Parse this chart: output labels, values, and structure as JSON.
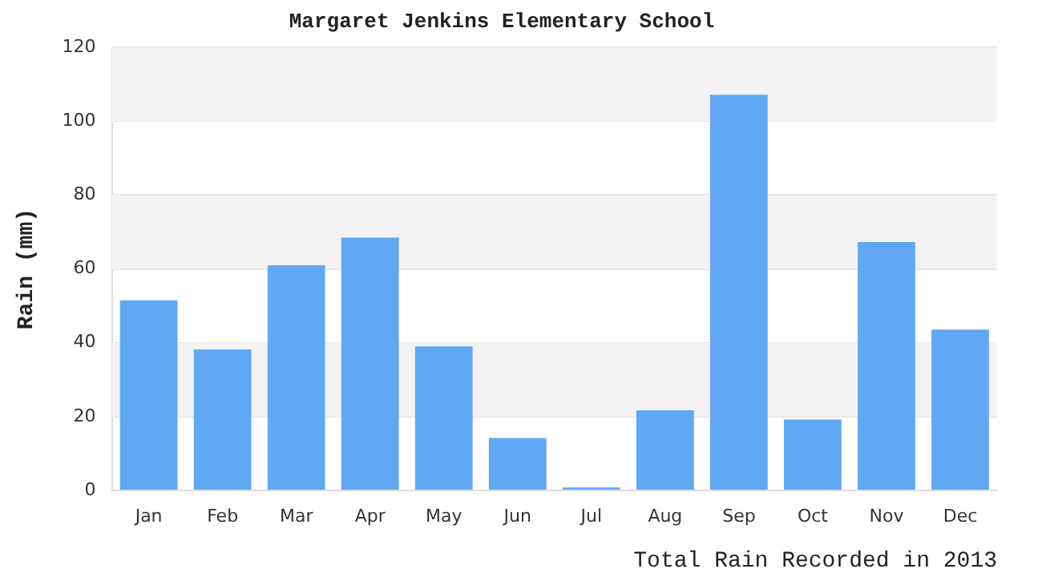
{
  "chart_data": {
    "type": "bar",
    "title": "Margaret Jenkins Elementary School",
    "xlabel": "Total Rain Recorded in 2013",
    "ylabel": "Rain (mm)",
    "categories": [
      "Jan",
      "Feb",
      "Mar",
      "Apr",
      "May",
      "Jun",
      "Jul",
      "Aug",
      "Sep",
      "Oct",
      "Nov",
      "Dec"
    ],
    "values": [
      51.5,
      38.2,
      61,
      68.5,
      39,
      14.2,
      0.8,
      21.7,
      107.2,
      19.2,
      67.3,
      43.6
    ],
    "color": "#60a8f4",
    "ylim": [
      0,
      120
    ],
    "yticks": [
      0,
      20,
      40,
      60,
      80,
      100,
      120
    ],
    "grid": "y",
    "legend": false
  }
}
